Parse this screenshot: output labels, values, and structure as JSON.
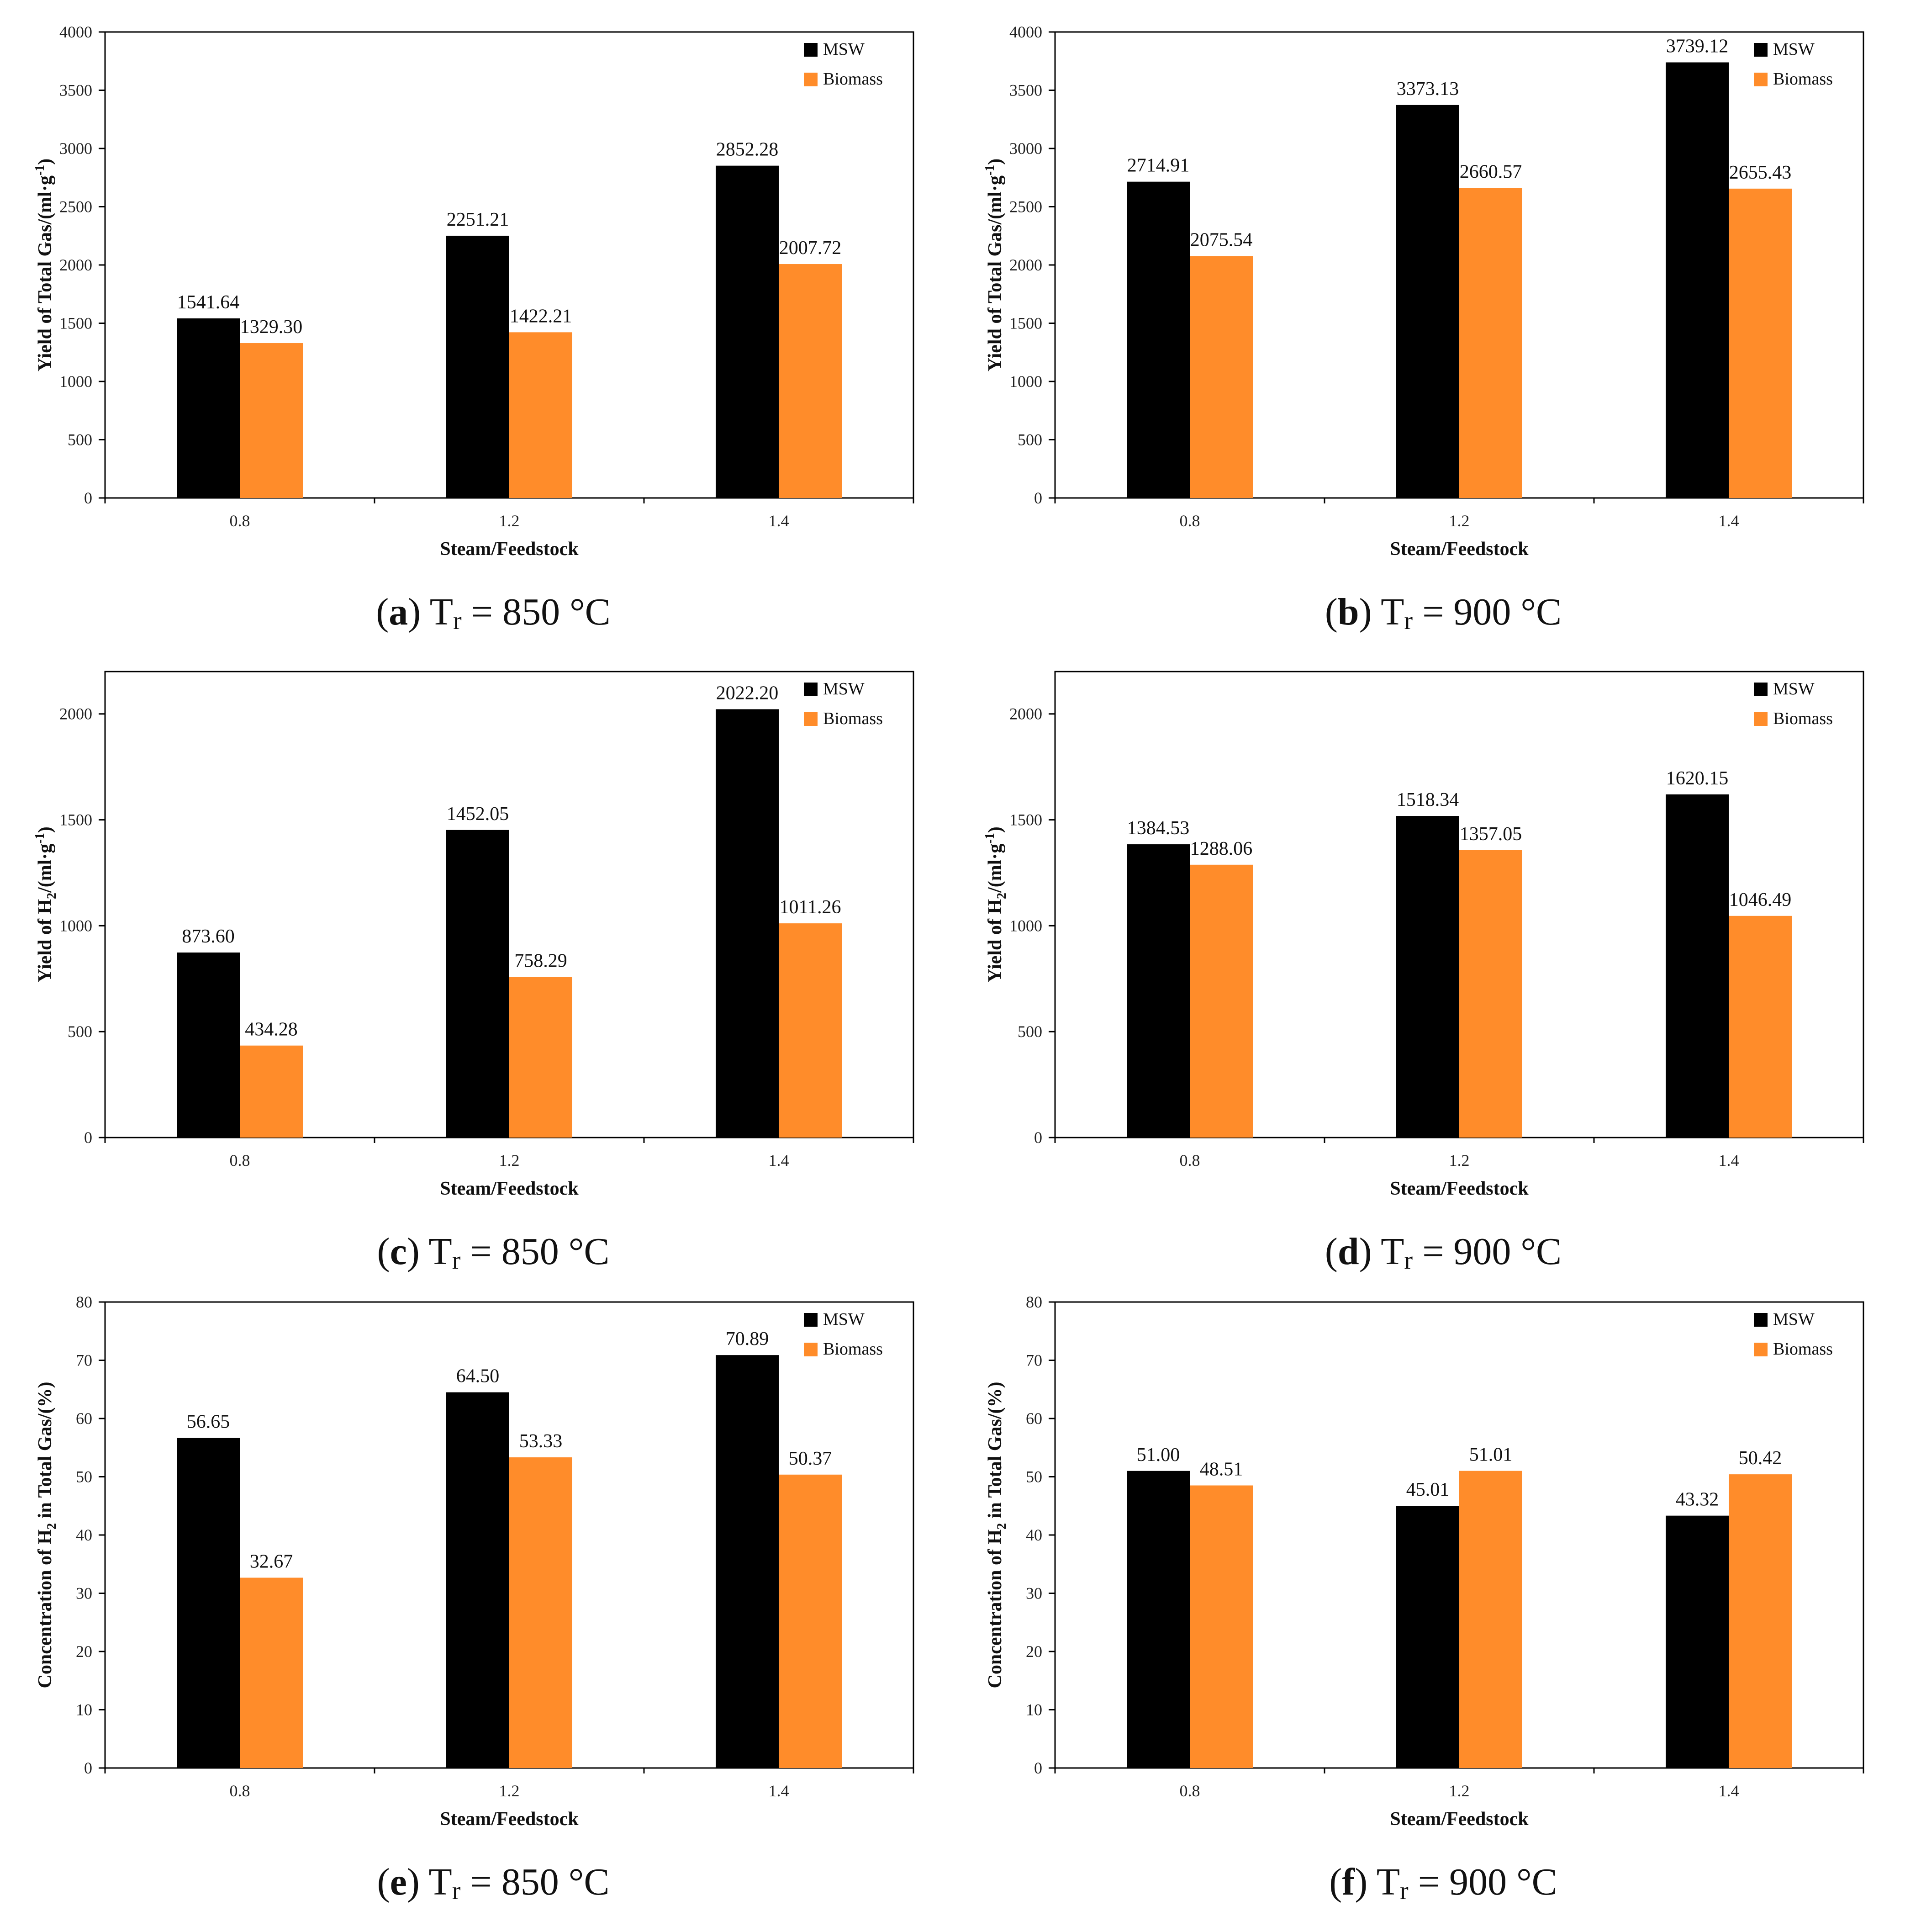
{
  "chart_data": [
    {
      "type": "bar",
      "id": "a",
      "caption": {
        "letter": "a",
        "prefix": "T",
        "sub": "r",
        "suffix": " = 850 °C"
      },
      "categories": [
        "0.8",
        "1.2",
        "1.4"
      ],
      "series": [
        {
          "name": "MSW",
          "color": "#000000",
          "values": [
            1541.64,
            2251.21,
            2852.28
          ]
        },
        {
          "name": "Biomass",
          "color": "#ff8c2a",
          "values": [
            1329.3,
            1422.21,
            2007.72
          ]
        }
      ],
      "labels": [
        [
          "1541.64",
          "2251.21",
          "2852.28"
        ],
        [
          "1329.30",
          "1422.21",
          "2007.72"
        ]
      ],
      "xlabel": "Steam/Feedstock",
      "ylabel": {
        "main": "Yield of Total Gas/(ml·g",
        "sup": "-1",
        "tail": ")"
      },
      "ylim": [
        0,
        4000
      ],
      "yticks": [
        "0",
        "500",
        "1000",
        "1500",
        "2000",
        "2500",
        "3000",
        "3500",
        "4000"
      ],
      "legend": "top-right"
    },
    {
      "type": "bar",
      "id": "b",
      "caption": {
        "letter": "b",
        "prefix": "T",
        "sub": "r",
        "suffix": " = 900 °C"
      },
      "categories": [
        "0.8",
        "1.2",
        "1.4"
      ],
      "series": [
        {
          "name": "MSW",
          "color": "#000000",
          "values": [
            2714.91,
            3373.13,
            3739.12
          ]
        },
        {
          "name": "Biomass",
          "color": "#ff8c2a",
          "values": [
            2075.54,
            2660.57,
            2655.43
          ]
        }
      ],
      "labels": [
        [
          "2714.91",
          "3373.13",
          "3739.12"
        ],
        [
          "2075.54",
          "2660.57",
          "2655.43"
        ]
      ],
      "xlabel": "Steam/Feedstock",
      "ylabel": {
        "main": "Yield of Total Gas/(ml·g",
        "sup": "-1",
        "tail": ")"
      },
      "ylim": [
        0,
        4000
      ],
      "yticks": [
        "0",
        "500",
        "1000",
        "1500",
        "2000",
        "2500",
        "3000",
        "3500",
        "4000"
      ],
      "legend": "top-right"
    },
    {
      "type": "bar",
      "id": "c",
      "caption": {
        "letter": "c",
        "prefix": "T",
        "sub": "r",
        "suffix": " = 850 °C"
      },
      "categories": [
        "0.8",
        "1.2",
        "1.4"
      ],
      "series": [
        {
          "name": "MSW",
          "color": "#000000",
          "values": [
            873.6,
            1452.05,
            2022.2
          ]
        },
        {
          "name": "Biomass",
          "color": "#ff8c2a",
          "values": [
            434.28,
            758.29,
            1011.26
          ]
        }
      ],
      "labels": [
        [
          "873.60",
          "1452.05",
          "2022.20"
        ],
        [
          "434.28",
          "758.29",
          "1011.26"
        ]
      ],
      "xlabel": "Steam/Feedstock",
      "ylabel": {
        "main": "Yield of H",
        "sub": "2",
        "main2": "/(ml·g",
        "sup": "-1",
        "tail": ")"
      },
      "ylim": [
        0,
        2200
      ],
      "yticks": [
        "0",
        "500",
        "1000",
        "1500",
        "2000"
      ],
      "legend": "top-right"
    },
    {
      "type": "bar",
      "id": "d",
      "caption": {
        "letter": "d",
        "prefix": "T",
        "sub": "r",
        "suffix": " = 900 °C"
      },
      "categories": [
        "0.8",
        "1.2",
        "1.4"
      ],
      "series": [
        {
          "name": "MSW",
          "color": "#000000",
          "values": [
            1384.53,
            1518.34,
            1620.15
          ]
        },
        {
          "name": "Biomass",
          "color": "#ff8c2a",
          "values": [
            1288.06,
            1357.05,
            1046.49
          ]
        }
      ],
      "labels": [
        [
          "1384.53",
          "1518.34",
          "1620.15"
        ],
        [
          "1288.06",
          "1357.05",
          "1046.49"
        ]
      ],
      "xlabel": "Steam/Feedstock",
      "ylabel": {
        "main": "Yield of H",
        "sub": "2",
        "main2": "/(ml·g",
        "sup": "-1",
        "tail": ")"
      },
      "ylim": [
        0,
        2200
      ],
      "yticks": [
        "0",
        "500",
        "1000",
        "1500",
        "2000"
      ],
      "legend": "top-right"
    },
    {
      "type": "bar",
      "id": "e",
      "caption": {
        "letter": "e",
        "prefix": "T",
        "sub": "r",
        "suffix": " = 850 °C"
      },
      "categories": [
        "0.8",
        "1.2",
        "1.4"
      ],
      "series": [
        {
          "name": "MSW",
          "color": "#000000",
          "values": [
            56.65,
            64.5,
            70.89
          ]
        },
        {
          "name": "Biomass",
          "color": "#ff8c2a",
          "values": [
            32.67,
            53.33,
            50.37
          ]
        }
      ],
      "labels": [
        [
          "56.65",
          "64.50",
          "70.89"
        ],
        [
          "32.67",
          "53.33",
          "50.37"
        ]
      ],
      "xlabel": "Steam/Feedstock",
      "ylabel": {
        "main": "Concentration of H",
        "sub": "2",
        "main2": " in Total Gas/(%)"
      },
      "ylim": [
        0,
        80
      ],
      "yticks": [
        "0",
        "10",
        "20",
        "30",
        "40",
        "50",
        "60",
        "70",
        "80"
      ],
      "legend": "top-right"
    },
    {
      "type": "bar",
      "id": "f",
      "caption": {
        "letter": "f",
        "prefix": "T",
        "sub": "r",
        "suffix": " = 900 °C"
      },
      "categories": [
        "0.8",
        "1.2",
        "1.4"
      ],
      "series": [
        {
          "name": "MSW",
          "color": "#000000",
          "values": [
            51.0,
            45.01,
            43.32
          ]
        },
        {
          "name": "Biomass",
          "color": "#ff8c2a",
          "values": [
            48.51,
            51.01,
            50.42
          ]
        }
      ],
      "labels": [
        [
          "51.00",
          "45.01",
          "43.32"
        ],
        [
          "48.51",
          "51.01",
          "50.42"
        ]
      ],
      "xlabel": "Steam/Feedstock",
      "ylabel": {
        "main": "Concentration of H",
        "sub": "2",
        "main2": " in Total Gas/(%)"
      },
      "ylim": [
        0,
        80
      ],
      "yticks": [
        "0",
        "10",
        "20",
        "30",
        "40",
        "50",
        "60",
        "70",
        "80"
      ],
      "legend": "top-right"
    }
  ]
}
